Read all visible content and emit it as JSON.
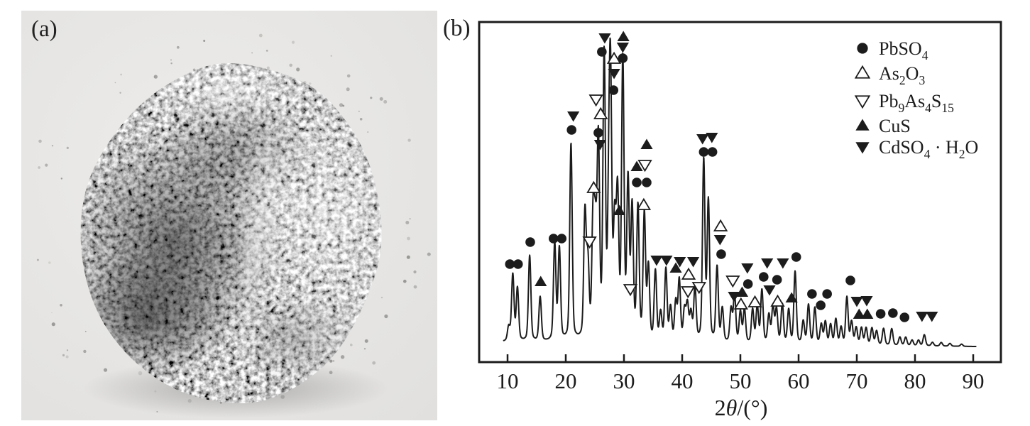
{
  "figure": {
    "panels": [
      {
        "label": "(a)",
        "kind": "photograph of gray powder sample"
      },
      {
        "label": "(b)",
        "kind": "XRD pattern"
      }
    ]
  },
  "colors": {
    "ink": "#1c1c1c",
    "background": "#ffffff",
    "photo_bg_light": "#edecea",
    "photo_bg_dark": "#e1e0de"
  },
  "chart_data": {
    "type": "line",
    "title": "",
    "xlabel": "2θ/(°)",
    "xlabel_segments": [
      {
        "t": "2"
      },
      {
        "it": "θ"
      },
      {
        "t": "/(°)"
      }
    ],
    "ylabel": "",
    "xlim": [
      5,
      95
    ],
    "x_ticks": [
      10,
      20,
      30,
      40,
      50,
      60,
      70,
      80,
      90
    ],
    "grid": false,
    "legend_position": "upper right",
    "peaks_units": {
      "x": "two_theta_deg",
      "y": "relative_intensity_pct_of_max"
    },
    "peaks": [
      [
        10.2,
        5
      ],
      [
        10.9,
        24
      ],
      [
        11.7,
        19
      ],
      [
        13.8,
        31
      ],
      [
        15.6,
        16
      ],
      [
        18.1,
        35
      ],
      [
        18.9,
        33
      ],
      [
        20.9,
        71
      ],
      [
        23.3,
        45
      ],
      [
        23.8,
        26
      ],
      [
        24.7,
        42
      ],
      [
        25.1,
        33
      ],
      [
        25.6,
        69
      ],
      [
        26.6,
        100
      ],
      [
        27.4,
        43
      ],
      [
        27.7,
        84
      ],
      [
        28.4,
        38
      ],
      [
        28.9,
        49
      ],
      [
        29.8,
        99
      ],
      [
        30.7,
        55
      ],
      [
        31.4,
        46
      ],
      [
        32.4,
        47
      ],
      [
        33.5,
        45
      ],
      [
        34.2,
        26
      ],
      [
        35.4,
        25
      ],
      [
        36.3,
        10
      ],
      [
        37.2,
        26
      ],
      [
        38.0,
        12
      ],
      [
        38.9,
        14
      ],
      [
        39.5,
        22
      ],
      [
        40.4,
        11
      ],
      [
        40.9,
        13
      ],
      [
        41.5,
        10
      ],
      [
        42.2,
        19
      ],
      [
        43.7,
        65
      ],
      [
        44.5,
        50
      ],
      [
        46.0,
        27
      ],
      [
        46.9,
        12
      ],
      [
        48.4,
        12
      ],
      [
        49.0,
        17
      ],
      [
        50.0,
        11
      ],
      [
        50.7,
        12
      ],
      [
        52.1,
        12
      ],
      [
        52.9,
        13
      ],
      [
        53.7,
        19
      ],
      [
        54.9,
        10
      ],
      [
        55.6,
        13
      ],
      [
        56.2,
        12
      ],
      [
        57.2,
        14
      ],
      [
        58.3,
        12
      ],
      [
        59.4,
        26
      ],
      [
        60.8,
        8
      ],
      [
        61.7,
        14
      ],
      [
        62.8,
        13
      ],
      [
        63.9,
        7
      ],
      [
        64.6,
        8
      ],
      [
        65.5,
        7
      ],
      [
        66.4,
        9
      ],
      [
        67.3,
        6
      ],
      [
        68.3,
        17
      ],
      [
        69.1,
        8
      ],
      [
        69.9,
        6
      ],
      [
        70.8,
        6
      ],
      [
        71.6,
        6
      ],
      [
        72.6,
        6
      ],
      [
        73.4,
        5
      ],
      [
        74.6,
        6
      ],
      [
        76.0,
        6
      ],
      [
        77.4,
        3
      ],
      [
        78.4,
        3
      ],
      [
        79.5,
        2
      ],
      [
        80.6,
        2
      ],
      [
        81.6,
        4
      ],
      [
        83.0,
        1.3
      ],
      [
        84.5,
        1.3
      ],
      [
        86.0,
        1
      ],
      [
        88.0,
        0.8
      ]
    ],
    "phases": [
      {
        "name": "PbSO4",
        "symbol": "filled-circle",
        "formula_segments": [
          {
            "t": "PbSO"
          },
          {
            "s": "4"
          }
        ],
        "markers": [
          [
            10.4,
            372
          ],
          [
            11.8,
            372
          ],
          [
            13.9,
            341
          ],
          [
            17.9,
            336
          ],
          [
            19.3,
            336
          ],
          [
            21.0,
            183
          ],
          [
            25.6,
            187
          ],
          [
            26.2,
            73
          ],
          [
            28.2,
            127
          ],
          [
            29.8,
            82
          ],
          [
            32.2,
            257
          ],
          [
            33.9,
            257
          ],
          [
            43.7,
            214
          ],
          [
            45.2,
            214
          ],
          [
            46.7,
            358
          ],
          [
            51.3,
            400
          ],
          [
            54.0,
            390
          ],
          [
            56.3,
            394
          ],
          [
            59.6,
            362
          ],
          [
            62.3,
            414
          ],
          [
            63.8,
            430
          ],
          [
            64.9,
            414
          ],
          [
            68.9,
            395
          ],
          [
            74.1,
            442
          ],
          [
            76.2,
            441
          ],
          [
            78.2,
            447
          ]
        ]
      },
      {
        "name": "As2O3",
        "symbol": "open-triangle-up",
        "formula_segments": [
          {
            "t": "As"
          },
          {
            "s": "2"
          },
          {
            "t": "O"
          },
          {
            "s": "3"
          }
        ],
        "markers": [
          [
            24.8,
            265
          ],
          [
            26.0,
            161
          ],
          [
            28.3,
            83
          ],
          [
            33.4,
            289
          ],
          [
            41.1,
            387
          ],
          [
            46.6,
            319
          ],
          [
            50.1,
            429
          ],
          [
            52.5,
            426
          ],
          [
            56.4,
            425
          ]
        ]
      },
      {
        "name": "Pb9As4S15",
        "symbol": "open-triangle-down",
        "formula_segments": [
          {
            "t": "Pb"
          },
          {
            "s": "9"
          },
          {
            "t": "As"
          },
          {
            "s": "4"
          },
          {
            "t": "S"
          },
          {
            "s": "15"
          }
        ],
        "markers": [
          [
            24.1,
            340
          ],
          [
            25.2,
            140
          ],
          [
            31.1,
            407
          ],
          [
            33.6,
            232
          ],
          [
            41.0,
            410
          ],
          [
            42.9,
            404
          ],
          [
            48.7,
            395
          ]
        ]
      },
      {
        "name": "CuS",
        "symbol": "filled-triangle-up",
        "formula_segments": [
          {
            "t": "CuS"
          }
        ],
        "markers": [
          [
            15.7,
            397
          ],
          [
            29.2,
            297
          ],
          [
            29.9,
            52
          ],
          [
            32.2,
            235
          ],
          [
            33.9,
            204
          ],
          [
            38.9,
            378
          ],
          [
            50.3,
            412
          ],
          [
            58.8,
            420
          ],
          [
            70.4,
            443
          ],
          [
            71.8,
            443
          ]
        ]
      },
      {
        "name": "CdSO4·H2O",
        "symbol": "filled-triangle-down",
        "formula_segments": [
          {
            "t": "CdSO"
          },
          {
            "s": "4"
          },
          {
            "t": " · H"
          },
          {
            "s": "2"
          },
          {
            "t": "O"
          }
        ],
        "markers": [
          [
            21.3,
            163
          ],
          [
            25.9,
            203
          ],
          [
            26.7,
            53
          ],
          [
            28.3,
            103
          ],
          [
            29.8,
            66
          ],
          [
            35.6,
            366
          ],
          [
            37.3,
            366
          ],
          [
            39.6,
            368
          ],
          [
            41.9,
            368
          ],
          [
            43.5,
            195
          ],
          [
            45.1,
            193
          ],
          [
            46.5,
            337
          ],
          [
            48.9,
            417
          ],
          [
            51.2,
            377
          ],
          [
            54.6,
            370
          ],
          [
            55.0,
            408
          ],
          [
            57.3,
            370
          ],
          [
            70.0,
            424
          ],
          [
            71.7,
            423
          ],
          [
            81.2,
            445
          ],
          [
            82.9,
            445
          ]
        ]
      }
    ]
  }
}
